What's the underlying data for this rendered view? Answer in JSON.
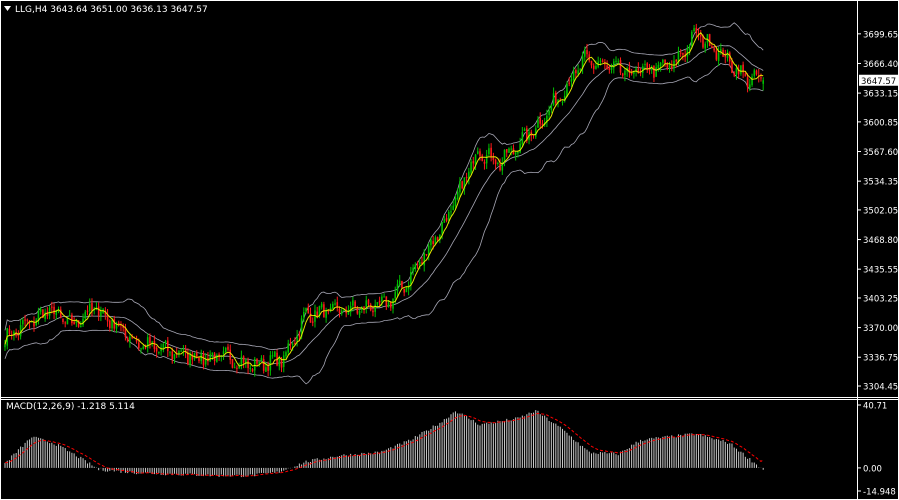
{
  "window": {
    "symbol_line": "LLG,H4  3643.64 3651.00 3636.13 3647.57",
    "indicator_label": "MACD(12,26,9) -1.218 5.114"
  },
  "colors": {
    "background": "#000000",
    "frame": "#ffffff",
    "bull_candle": "#00c000",
    "bear_candle": "#ff1a1a",
    "bollinger": "#a7a7b5",
    "moving_average": "#e6e600",
    "macd_histogram": "#c8c8c8",
    "macd_signal": "#ff0000",
    "price_box": "#ffffff"
  },
  "chart_data": [
    {
      "type": "line",
      "name": "price",
      "y_ticks": [
        3699.65,
        3666.4,
        3633.15,
        3600.85,
        3567.6,
        3534.35,
        3502.05,
        3468.8,
        3435.55,
        3403.25,
        3370.0,
        3336.75,
        3304.45
      ],
      "y_tick_labels": [
        "3699.65",
        "3666.40",
        "3633.15",
        "3600.85",
        "3567.60",
        "3534.35",
        "3502.05",
        "3468.80",
        "3435.55",
        "3403.25",
        "3370.00",
        "3336.75",
        "3304.45"
      ],
      "current_price": 3647.57,
      "current_price_label": "3647.57",
      "ylim": [
        3295.5,
        3736.5
      ],
      "ohlc_last": {
        "open": 3643.64,
        "high": 3651.0,
        "low": 3636.13,
        "close": 3647.57
      },
      "close_anchors": [
        [
          0,
          3358
        ],
        [
          20,
          3390
        ],
        [
          30,
          3372
        ],
        [
          40,
          3393
        ],
        [
          60,
          3352
        ],
        [
          70,
          3345
        ],
        [
          90,
          3336
        ],
        [
          100,
          3337
        ],
        [
          110,
          3327
        ],
        [
          125,
          3335
        ],
        [
          135,
          3385
        ],
        [
          170,
          3395
        ],
        [
          180,
          3420
        ],
        [
          200,
          3500
        ],
        [
          212,
          3570
        ],
        [
          222,
          3555
        ],
        [
          240,
          3600
        ],
        [
          260,
          3670
        ],
        [
          280,
          3655
        ],
        [
          300,
          3665
        ],
        [
          310,
          3700
        ],
        [
          320,
          3680
        ],
        [
          332,
          3650
        ],
        [
          340,
          3647.57
        ]
      ]
    },
    {
      "type": "bar",
      "name": "MACD",
      "y_ticks": [
        40.71,
        0.0,
        -14.948
      ],
      "y_tick_labels": [
        "40.71",
        "0.00",
        "-14.948"
      ],
      "ylim": [
        -14.948,
        40.71
      ],
      "last_values": {
        "macd": -1.218,
        "signal": 5.114
      },
      "histogram_anchors": [
        [
          0,
          3
        ],
        [
          12,
          20
        ],
        [
          22,
          16
        ],
        [
          32,
          8
        ],
        [
          42,
          -1
        ],
        [
          57,
          -3
        ],
        [
          75,
          -4
        ],
        [
          95,
          -5
        ],
        [
          110,
          -5
        ],
        [
          122,
          -3
        ],
        [
          135,
          4
        ],
        [
          150,
          8
        ],
        [
          168,
          10
        ],
        [
          182,
          18
        ],
        [
          196,
          30
        ],
        [
          202,
          37
        ],
        [
          213,
          28
        ],
        [
          230,
          32
        ],
        [
          238,
          37
        ],
        [
          250,
          25
        ],
        [
          262,
          10
        ],
        [
          275,
          9
        ],
        [
          285,
          18
        ],
        [
          297,
          20
        ],
        [
          310,
          22
        ],
        [
          325,
          16
        ],
        [
          340,
          -1.218
        ]
      ]
    }
  ]
}
